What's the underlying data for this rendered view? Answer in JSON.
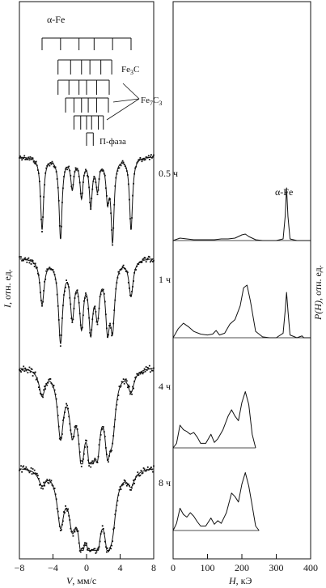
{
  "chart_data": [
    {
      "type": "scatter",
      "panel": "mossbauer-spectra",
      "xlabel_var": "V",
      "xlabel_unit": ", мм/с",
      "ylabel_var": "I",
      "ylabel_unit": ", отн. ед.",
      "xlim": [
        -8,
        8
      ],
      "xticks": [
        -8,
        -4,
        0,
        4,
        8
      ],
      "xtick_labels": [
        "−8",
        "−4",
        "0",
        "4",
        "8"
      ],
      "line_peaks": [
        -5.3,
        -3.1,
        -1.7,
        -0.6,
        0.5,
        1.3,
        2.5,
        3.1,
        5.3
      ],
      "series": [
        {
          "name": "0.5 ч",
          "sharpness": 1.0,
          "depths": [
            0.85,
            0.95,
            0.35,
            0.45,
            0.55,
            0.35,
            0.45,
            0.95,
            0.85
          ],
          "noise": 0.03
        },
        {
          "name": "1 ч",
          "sharpness": 1.4,
          "depths": [
            0.55,
            1.0,
            0.65,
            0.75,
            0.8,
            0.6,
            0.75,
            0.75,
            0.45
          ],
          "noise": 0.035
        },
        {
          "name": "4 ч",
          "sharpness": 2.0,
          "depths": [
            0.3,
            0.75,
            0.6,
            0.9,
            1.0,
            0.7,
            0.75,
            0.55,
            0.25
          ],
          "noise": 0.04
        },
        {
          "name": "8 ч",
          "sharpness": 2.3,
          "depths": [
            0.2,
            0.7,
            0.6,
            0.85,
            1.0,
            0.7,
            0.75,
            0.55,
            0.2
          ],
          "noise": 0.045
        }
      ]
    },
    {
      "type": "line",
      "panel": "field-distributions",
      "xlabel_var": "H",
      "xlabel_unit": ", кЭ",
      "ylabel_var": "P(H)",
      "ylabel_unit": ", отн. ед.",
      "xlim": [
        0,
        400
      ],
      "xticks": [
        0,
        100,
        200,
        300,
        400
      ],
      "xtick_labels": [
        "0",
        "100",
        "200",
        "300",
        "400"
      ],
      "peak_label": "α-Fe",
      "series": [
        {
          "name": "0.5 ч",
          "x": [
            0,
            20,
            40,
            60,
            80,
            100,
            120,
            140,
            160,
            180,
            200,
            210,
            220,
            240,
            260,
            280,
            300,
            320,
            326,
            330,
            334,
            340,
            360,
            380,
            400
          ],
          "y": [
            0,
            0.03,
            0.02,
            0.01,
            0.01,
            0.01,
            0.01,
            0.02,
            0.02,
            0.03,
            0.07,
            0.08,
            0.05,
            0.01,
            0,
            0,
            0,
            0.02,
            0.3,
            0.65,
            0.3,
            0.02,
            0,
            0,
            0
          ]
        },
        {
          "name": "1 ч",
          "x": [
            0,
            15,
            30,
            45,
            60,
            80,
            100,
            115,
            125,
            135,
            150,
            165,
            180,
            195,
            205,
            215,
            225,
            240,
            260,
            280,
            300,
            320,
            326,
            330,
            334,
            340,
            360,
            375,
            380,
            400
          ],
          "y": [
            0,
            0.1,
            0.16,
            0.12,
            0.07,
            0.04,
            0.03,
            0.04,
            0.08,
            0.03,
            0.05,
            0.15,
            0.2,
            0.35,
            0.55,
            0.58,
            0.4,
            0.07,
            0.01,
            0,
            0,
            0.05,
            0.3,
            0.5,
            0.3,
            0.03,
            0,
            0.02,
            0,
            0
          ]
        },
        {
          "name": "4 ч",
          "x": [
            0,
            10,
            20,
            30,
            40,
            50,
            60,
            70,
            80,
            95,
            110,
            120,
            130,
            145,
            160,
            170,
            180,
            190,
            200,
            210,
            220,
            230,
            240
          ],
          "y": [
            0,
            0.05,
            0.25,
            0.2,
            0.18,
            0.15,
            0.17,
            0.12,
            0.05,
            0.05,
            0.15,
            0.06,
            0.1,
            0.2,
            0.35,
            0.42,
            0.35,
            0.3,
            0.5,
            0.62,
            0.48,
            0.15,
            0
          ]
        },
        {
          "name": "8 ч",
          "x": [
            0,
            10,
            20,
            30,
            40,
            50,
            60,
            70,
            80,
            95,
            110,
            120,
            130,
            140,
            155,
            170,
            180,
            190,
            200,
            210,
            220,
            230,
            240,
            250
          ],
          "y": [
            0,
            0.08,
            0.25,
            0.18,
            0.15,
            0.2,
            0.16,
            0.1,
            0.05,
            0.05,
            0.14,
            0.07,
            0.11,
            0.08,
            0.2,
            0.42,
            0.38,
            0.32,
            0.52,
            0.65,
            0.5,
            0.28,
            0.05,
            0
          ]
        }
      ]
    }
  ],
  "phase_diagram": {
    "phases": [
      {
        "name": "α-Fe",
        "lines": [
          -5.3,
          -3.1,
          -0.9,
          0.9,
          3.1,
          5.3
        ]
      },
      {
        "name": "Fe3C",
        "lines": [
          -3.4,
          -1.9,
          -0.6,
          0.4,
          1.7,
          3.0
        ]
      },
      {
        "name": "Fe7C3",
        "lines": [
          -3.4,
          -2.1,
          -0.9,
          0.0,
          1.2,
          2.7
        ]
      },
      {
        "name": "Fe7C3",
        "lines": [
          -2.5,
          -1.5,
          -0.6,
          0.2,
          1.2,
          2.6
        ]
      },
      {
        "name": "Fe7C3",
        "lines": [
          -1.5,
          -0.7,
          0.0,
          0.6,
          1.4,
          2.0
        ]
      },
      {
        "name": "П-фаза",
        "lines": [
          0.0,
          0.8
        ]
      }
    ],
    "labels": {
      "alpha_fe": "α-Fe",
      "fe3c_base": "Fe",
      "fe3c_sub": "3",
      "fe3c_tail": "C",
      "fe7c3_base": "Fe",
      "fe7c3_sub1": "7",
      "fe7c3_mid": "C",
      "fe7c3_sub2": "3",
      "p_phase": "П-фаза"
    }
  }
}
